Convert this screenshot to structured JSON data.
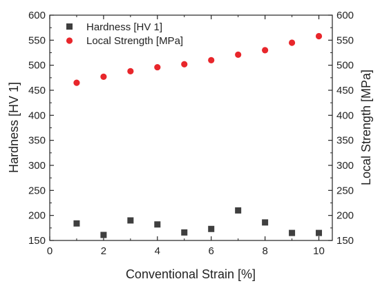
{
  "chart_data": {
    "type": "scatter",
    "xlabel": "Conventional Strain [%]",
    "ylabel_left": "Hardness [HV 1]",
    "ylabel_right": "Local Strength [MPa]",
    "xlim": [
      0,
      10.5
    ],
    "ylim_left": [
      150,
      600
    ],
    "ylim_right": [
      150,
      600
    ],
    "x_ticks": [
      "0",
      "2",
      "4",
      "6",
      "8",
      "10"
    ],
    "y_ticks_left": [
      "150",
      "200",
      "250",
      "300",
      "350",
      "400",
      "450",
      "500",
      "550",
      "600"
    ],
    "y_ticks_right": [
      "150",
      "200",
      "250",
      "300",
      "350",
      "400",
      "450",
      "500",
      "550",
      "600"
    ],
    "grid": false,
    "legend_position": "top-left",
    "series": [
      {
        "name": "Hardness [HV 1]",
        "axis": "left",
        "marker": "square",
        "color": "#3f3f3f",
        "x": [
          1,
          2,
          3,
          4,
          5,
          6,
          7,
          8,
          9,
          10
        ],
        "y": [
          184,
          161,
          190,
          182,
          166,
          173,
          210,
          186,
          165,
          165
        ]
      },
      {
        "name": "Local Strength [MPa]",
        "axis": "right",
        "marker": "circle",
        "color": "#e8262b",
        "x": [
          1,
          2,
          3,
          4,
          5,
          6,
          7,
          8,
          9,
          10
        ],
        "y": [
          465,
          477,
          488,
          496,
          502,
          510,
          521,
          530,
          545,
          558
        ]
      }
    ]
  }
}
